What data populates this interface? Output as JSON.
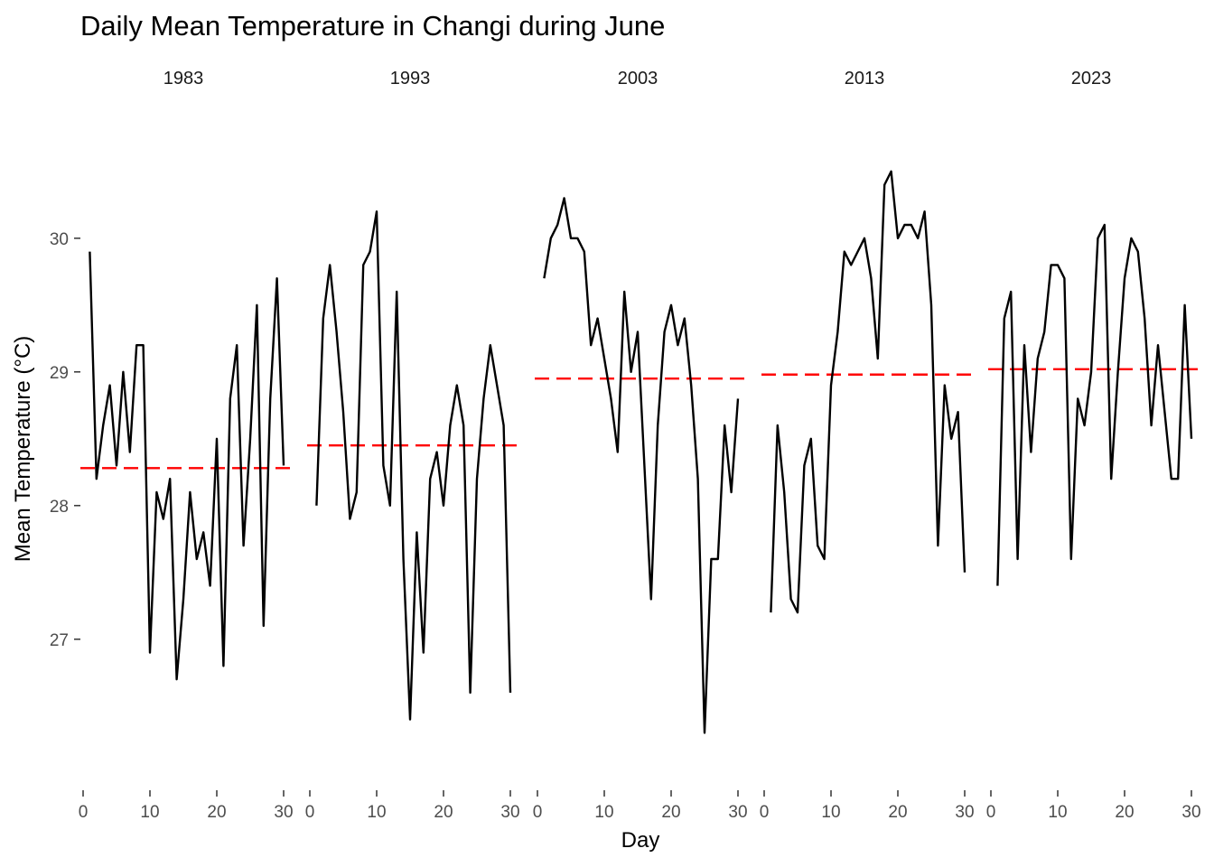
{
  "chart_data": {
    "type": "line",
    "title": "Daily Mean Temperature in Changi during June",
    "xlabel": "Day",
    "ylabel": "Mean Temperature (°C)",
    "xlim": [
      0,
      30
    ],
    "ylim": [
      26.1,
      30.6
    ],
    "x_ticks": [
      0,
      10,
      20,
      30
    ],
    "y_ticks": [
      27,
      28,
      29,
      30
    ],
    "grid": false,
    "legend": "none",
    "colors": {
      "series": "#000000",
      "mean": "#ff0000"
    },
    "panels": [
      {
        "label": "1983",
        "mean": 28.28,
        "x": [
          1,
          2,
          3,
          4,
          5,
          6,
          7,
          8,
          9,
          10,
          11,
          12,
          13,
          14,
          15,
          16,
          17,
          18,
          19,
          20,
          21,
          22,
          23,
          24,
          25,
          26,
          27,
          28,
          29,
          30
        ],
        "values": [
          29.9,
          28.2,
          28.6,
          28.9,
          28.3,
          29.0,
          28.4,
          29.2,
          29.2,
          26.9,
          28.1,
          27.9,
          28.2,
          26.7,
          27.3,
          28.1,
          27.6,
          27.8,
          27.4,
          28.5,
          26.8,
          28.8,
          29.2,
          27.7,
          28.5,
          29.5,
          27.1,
          28.8,
          29.7,
          28.3
        ]
      },
      {
        "label": "1993",
        "mean": 28.45,
        "x": [
          1,
          2,
          3,
          4,
          5,
          6,
          7,
          8,
          9,
          10,
          11,
          12,
          13,
          14,
          15,
          16,
          17,
          18,
          19,
          20,
          21,
          22,
          23,
          24,
          25,
          26,
          27,
          28,
          29,
          30
        ],
        "values": [
          28.0,
          29.4,
          29.8,
          29.3,
          28.7,
          27.9,
          28.1,
          29.8,
          29.9,
          30.2,
          28.3,
          28.0,
          29.6,
          27.6,
          26.4,
          27.8,
          26.9,
          28.2,
          28.4,
          28.0,
          28.6,
          28.9,
          28.6,
          26.6,
          28.2,
          28.8,
          29.2,
          28.9,
          28.6,
          26.6
        ]
      },
      {
        "label": "2003",
        "mean": 28.95,
        "x": [
          1,
          2,
          3,
          4,
          5,
          6,
          7,
          8,
          9,
          10,
          11,
          12,
          13,
          14,
          15,
          16,
          17,
          18,
          19,
          20,
          21,
          22,
          23,
          24,
          25,
          26,
          27,
          28,
          29,
          30
        ],
        "values": [
          29.7,
          30.0,
          30.1,
          30.3,
          30.0,
          30.0,
          29.9,
          29.2,
          29.4,
          29.1,
          28.8,
          28.4,
          29.6,
          29.0,
          29.3,
          28.3,
          27.3,
          28.6,
          29.3,
          29.5,
          29.2,
          29.4,
          28.9,
          28.2,
          26.3,
          27.6,
          27.6,
          28.6,
          28.1,
          28.8
        ]
      },
      {
        "label": "2013",
        "mean": 28.98,
        "x": [
          1,
          2,
          3,
          4,
          5,
          6,
          7,
          8,
          9,
          10,
          11,
          12,
          13,
          14,
          15,
          16,
          17,
          18,
          19,
          20,
          21,
          22,
          23,
          24,
          25,
          26,
          27,
          28,
          29,
          30
        ],
        "values": [
          27.2,
          28.6,
          28.1,
          27.3,
          27.2,
          28.3,
          28.5,
          27.7,
          27.6,
          28.9,
          29.3,
          29.9,
          29.8,
          29.9,
          30.0,
          29.7,
          29.1,
          30.4,
          30.5,
          30.0,
          30.1,
          30.1,
          30.0,
          30.2,
          29.5,
          27.7,
          28.9,
          28.5,
          28.7,
          27.5
        ]
      },
      {
        "label": "2023",
        "mean": 29.02,
        "x": [
          1,
          2,
          3,
          4,
          5,
          6,
          7,
          8,
          9,
          10,
          11,
          12,
          13,
          14,
          15,
          16,
          17,
          18,
          19,
          20,
          21,
          22,
          23,
          24,
          25,
          26,
          27,
          28,
          29,
          30
        ],
        "values": [
          27.4,
          29.4,
          29.6,
          27.6,
          29.2,
          28.4,
          29.1,
          29.3,
          29.8,
          29.8,
          29.7,
          27.6,
          28.8,
          28.6,
          29.0,
          30.0,
          30.1,
          28.2,
          29.0,
          29.7,
          30.0,
          29.9,
          29.4,
          28.6,
          29.2,
          28.7,
          28.2,
          28.2,
          29.5,
          28.5
        ]
      }
    ]
  }
}
